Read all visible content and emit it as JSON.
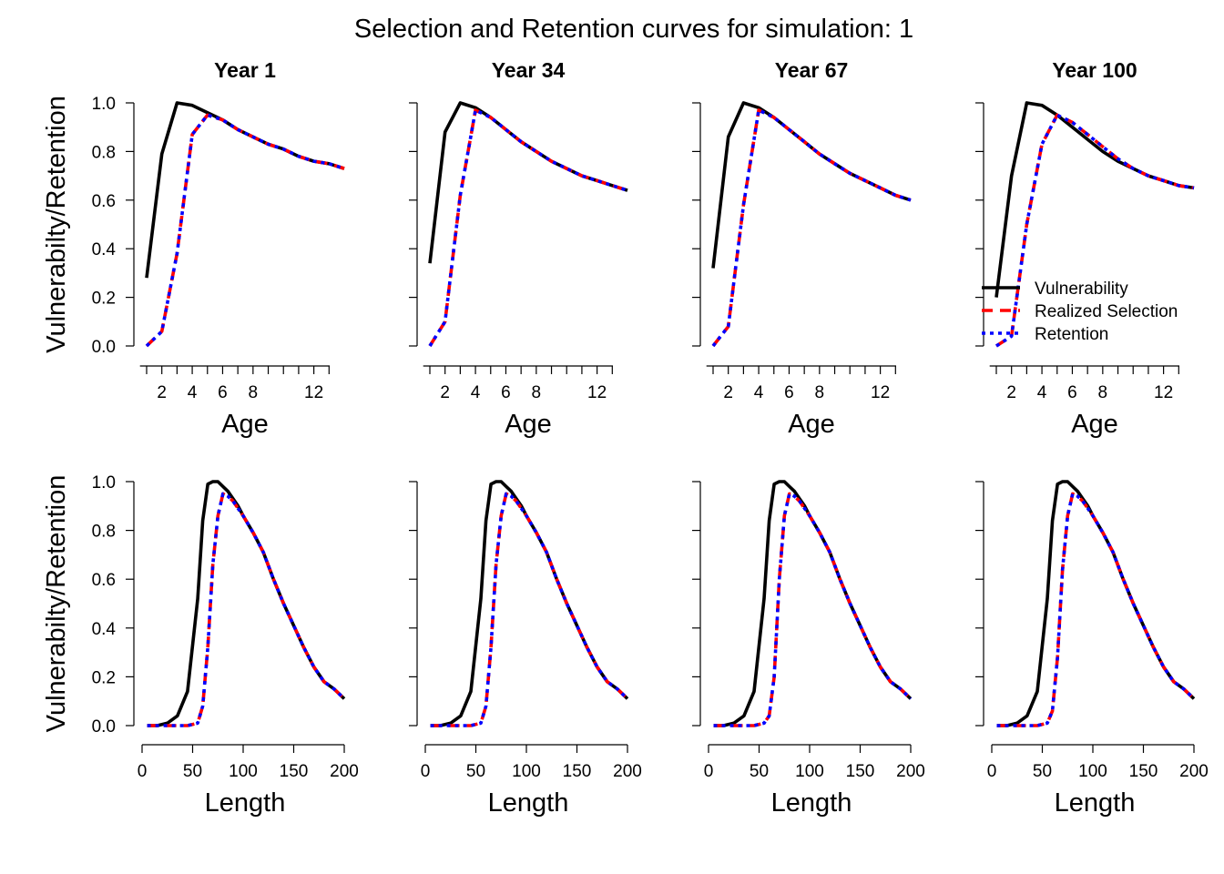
{
  "main_title": "Selection and Retention curves for simulation: 1",
  "colors": {
    "vulnerability": "#000000",
    "realized_selection": "#ff0000",
    "retention": "#0000ff",
    "axis": "#000000"
  },
  "legend": {
    "position": "bottom-right of top-right panel",
    "items": [
      {
        "label": "Vulnerability",
        "style": "solid",
        "color": "#000000"
      },
      {
        "label": "Realized Selection",
        "style": "dashed",
        "color": "#ff0000"
      },
      {
        "label": "Retention",
        "style": "dotted",
        "color": "#0000ff"
      }
    ]
  },
  "chart_data": [
    {
      "type": "line",
      "title": "Year 1",
      "xlabel": "Age",
      "ylabel": "Vulnerabilty/Retention",
      "xlim": [
        1,
        14
      ],
      "ylim": [
        0,
        1
      ],
      "xticks": [
        2,
        4,
        6,
        8,
        12
      ],
      "yticks": [
        "0.0",
        "0.2",
        "0.4",
        "0.6",
        "0.8",
        "1.0"
      ],
      "x": [
        1,
        2,
        3,
        4,
        5,
        6,
        7,
        8,
        9,
        10,
        11,
        12,
        13,
        14
      ],
      "series": [
        {
          "name": "Vulnerability",
          "values": [
            0.28,
            0.79,
            1.0,
            0.99,
            0.96,
            0.93,
            0.89,
            0.86,
            0.83,
            0.81,
            0.78,
            0.76,
            0.75,
            0.73
          ]
        },
        {
          "name": "Realized Selection",
          "values": [
            0.0,
            0.06,
            0.38,
            0.87,
            0.95,
            0.93,
            0.89,
            0.86,
            0.83,
            0.81,
            0.78,
            0.76,
            0.75,
            0.73
          ]
        },
        {
          "name": "Retention",
          "values": [
            0.0,
            0.06,
            0.38,
            0.87,
            0.95,
            0.93,
            0.89,
            0.86,
            0.83,
            0.81,
            0.78,
            0.76,
            0.75,
            0.73
          ]
        }
      ]
    },
    {
      "type": "line",
      "title": "Year 34",
      "xlabel": "Age",
      "ylabel": "",
      "xlim": [
        1,
        14
      ],
      "ylim": [
        0,
        1
      ],
      "xticks": [
        2,
        4,
        6,
        8,
        12
      ],
      "yticks": [],
      "x": [
        1,
        2,
        3,
        4,
        5,
        6,
        7,
        8,
        9,
        10,
        11,
        12,
        13,
        14
      ],
      "series": [
        {
          "name": "Vulnerability",
          "values": [
            0.34,
            0.88,
            1.0,
            0.98,
            0.94,
            0.89,
            0.84,
            0.8,
            0.76,
            0.73,
            0.7,
            0.68,
            0.66,
            0.64
          ]
        },
        {
          "name": "Realized Selection",
          "values": [
            0.0,
            0.1,
            0.62,
            0.97,
            0.94,
            0.89,
            0.84,
            0.8,
            0.76,
            0.73,
            0.7,
            0.68,
            0.66,
            0.64
          ]
        },
        {
          "name": "Retention",
          "values": [
            0.0,
            0.1,
            0.62,
            0.97,
            0.94,
            0.89,
            0.84,
            0.8,
            0.76,
            0.73,
            0.7,
            0.68,
            0.66,
            0.64
          ]
        }
      ]
    },
    {
      "type": "line",
      "title": "Year 67",
      "xlabel": "Age",
      "ylabel": "",
      "xlim": [
        1,
        14
      ],
      "ylim": [
        0,
        1
      ],
      "xticks": [
        2,
        4,
        6,
        8,
        12
      ],
      "yticks": [],
      "x": [
        1,
        2,
        3,
        4,
        5,
        6,
        7,
        8,
        9,
        10,
        11,
        12,
        13,
        14
      ],
      "series": [
        {
          "name": "Vulnerability",
          "values": [
            0.32,
            0.86,
            1.0,
            0.98,
            0.94,
            0.89,
            0.84,
            0.79,
            0.75,
            0.71,
            0.68,
            0.65,
            0.62,
            0.6
          ]
        },
        {
          "name": "Realized Selection",
          "values": [
            0.0,
            0.08,
            0.58,
            0.97,
            0.94,
            0.89,
            0.84,
            0.79,
            0.75,
            0.71,
            0.68,
            0.65,
            0.62,
            0.6
          ]
        },
        {
          "name": "Retention",
          "values": [
            0.0,
            0.08,
            0.58,
            0.97,
            0.94,
            0.89,
            0.84,
            0.79,
            0.75,
            0.71,
            0.68,
            0.65,
            0.62,
            0.6
          ]
        }
      ]
    },
    {
      "type": "line",
      "title": "Year 100",
      "xlabel": "Age",
      "ylabel": "",
      "xlim": [
        1,
        14
      ],
      "ylim": [
        0,
        1
      ],
      "xticks": [
        2,
        4,
        6,
        8,
        12
      ],
      "yticks": [],
      "x": [
        1,
        2,
        3,
        4,
        5,
        6,
        7,
        8,
        9,
        10,
        11,
        12,
        13,
        14
      ],
      "series": [
        {
          "name": "Vulnerability",
          "values": [
            0.2,
            0.7,
            1.0,
            0.99,
            0.95,
            0.9,
            0.85,
            0.8,
            0.76,
            0.73,
            0.7,
            0.68,
            0.66,
            0.65
          ]
        },
        {
          "name": "Realized Selection",
          "values": [
            0.0,
            0.04,
            0.5,
            0.83,
            0.95,
            0.92,
            0.87,
            0.82,
            0.77,
            0.73,
            0.7,
            0.68,
            0.66,
            0.65
          ]
        },
        {
          "name": "Retention",
          "values": [
            0.0,
            0.04,
            0.5,
            0.83,
            0.95,
            0.92,
            0.87,
            0.82,
            0.77,
            0.73,
            0.7,
            0.68,
            0.66,
            0.65
          ]
        }
      ]
    },
    {
      "type": "line",
      "title": "",
      "xlabel": "Length",
      "ylabel": "Vulnerabilty/Retention",
      "xlim": [
        0,
        200
      ],
      "ylim": [
        0,
        1
      ],
      "xticks": [
        0,
        50,
        100,
        150,
        200
      ],
      "yticks": [
        "0.0",
        "0.2",
        "0.4",
        "0.6",
        "0.8",
        "1.0"
      ],
      "x": [
        5,
        15,
        25,
        35,
        45,
        55,
        60,
        65,
        70,
        75,
        80,
        85,
        90,
        95,
        100,
        110,
        120,
        130,
        140,
        150,
        160,
        170,
        180,
        190,
        200
      ],
      "series": [
        {
          "name": "Vulnerability",
          "values": [
            0.0,
            0.0,
            0.01,
            0.04,
            0.14,
            0.52,
            0.84,
            0.99,
            1.0,
            1.0,
            0.98,
            0.96,
            0.93,
            0.9,
            0.86,
            0.79,
            0.71,
            0.6,
            0.5,
            0.41,
            0.32,
            0.24,
            0.18,
            0.15,
            0.11
          ]
        },
        {
          "name": "Realized Selection",
          "values": [
            0.0,
            0.0,
            0.0,
            0.0,
            0.0,
            0.01,
            0.08,
            0.32,
            0.66,
            0.86,
            0.95,
            0.94,
            0.92,
            0.89,
            0.86,
            0.79,
            0.71,
            0.6,
            0.5,
            0.41,
            0.32,
            0.24,
            0.18,
            0.15,
            0.11
          ]
        },
        {
          "name": "Retention",
          "values": [
            0.0,
            0.0,
            0.0,
            0.0,
            0.0,
            0.01,
            0.08,
            0.32,
            0.66,
            0.86,
            0.95,
            0.94,
            0.92,
            0.89,
            0.86,
            0.79,
            0.71,
            0.6,
            0.5,
            0.41,
            0.32,
            0.24,
            0.18,
            0.15,
            0.11
          ]
        }
      ]
    },
    {
      "type": "line",
      "title": "",
      "xlabel": "Length",
      "ylabel": "",
      "xlim": [
        0,
        200
      ],
      "ylim": [
        0,
        1
      ],
      "xticks": [
        0,
        50,
        100,
        150,
        200
      ],
      "yticks": [],
      "x": [
        5,
        15,
        25,
        35,
        45,
        55,
        60,
        65,
        70,
        75,
        80,
        85,
        90,
        95,
        100,
        110,
        120,
        130,
        140,
        150,
        160,
        170,
        180,
        190,
        200
      ],
      "series": [
        {
          "name": "Vulnerability",
          "values": [
            0.0,
            0.0,
            0.01,
            0.04,
            0.14,
            0.52,
            0.84,
            0.99,
            1.0,
            1.0,
            0.98,
            0.96,
            0.93,
            0.9,
            0.86,
            0.79,
            0.71,
            0.6,
            0.5,
            0.41,
            0.32,
            0.24,
            0.18,
            0.15,
            0.11
          ]
        },
        {
          "name": "Realized Selection",
          "values": [
            0.0,
            0.0,
            0.0,
            0.0,
            0.0,
            0.01,
            0.08,
            0.32,
            0.66,
            0.86,
            0.95,
            0.94,
            0.92,
            0.89,
            0.86,
            0.79,
            0.71,
            0.6,
            0.5,
            0.41,
            0.32,
            0.24,
            0.18,
            0.15,
            0.11
          ]
        },
        {
          "name": "Retention",
          "values": [
            0.0,
            0.0,
            0.0,
            0.0,
            0.0,
            0.01,
            0.08,
            0.32,
            0.66,
            0.86,
            0.95,
            0.94,
            0.92,
            0.89,
            0.86,
            0.79,
            0.71,
            0.6,
            0.5,
            0.41,
            0.32,
            0.24,
            0.18,
            0.15,
            0.11
          ]
        }
      ]
    },
    {
      "type": "line",
      "title": "",
      "xlabel": "Length",
      "ylabel": "",
      "xlim": [
        0,
        200
      ],
      "ylim": [
        0,
        1
      ],
      "xticks": [
        0,
        50,
        100,
        150,
        200
      ],
      "yticks": [],
      "x": [
        5,
        15,
        25,
        35,
        45,
        55,
        60,
        65,
        70,
        75,
        80,
        85,
        90,
        95,
        100,
        110,
        120,
        130,
        140,
        150,
        160,
        170,
        180,
        190,
        200
      ],
      "series": [
        {
          "name": "Vulnerability",
          "values": [
            0.0,
            0.0,
            0.01,
            0.04,
            0.14,
            0.52,
            0.84,
            0.99,
            1.0,
            1.0,
            0.98,
            0.96,
            0.93,
            0.9,
            0.86,
            0.79,
            0.71,
            0.6,
            0.5,
            0.41,
            0.32,
            0.24,
            0.18,
            0.15,
            0.11
          ]
        },
        {
          "name": "Realized Selection",
          "values": [
            0.0,
            0.0,
            0.0,
            0.0,
            0.0,
            0.01,
            0.04,
            0.2,
            0.6,
            0.86,
            0.95,
            0.94,
            0.92,
            0.89,
            0.86,
            0.79,
            0.71,
            0.6,
            0.5,
            0.41,
            0.32,
            0.24,
            0.18,
            0.15,
            0.11
          ]
        },
        {
          "name": "Retention",
          "values": [
            0.0,
            0.0,
            0.0,
            0.0,
            0.0,
            0.01,
            0.04,
            0.2,
            0.6,
            0.86,
            0.95,
            0.94,
            0.92,
            0.89,
            0.86,
            0.79,
            0.71,
            0.6,
            0.5,
            0.41,
            0.32,
            0.24,
            0.18,
            0.15,
            0.11
          ]
        }
      ]
    },
    {
      "type": "line",
      "title": "",
      "xlabel": "Length",
      "ylabel": "",
      "xlim": [
        0,
        200
      ],
      "ylim": [
        0,
        1
      ],
      "xticks": [
        0,
        50,
        100,
        150,
        200
      ],
      "yticks": [],
      "x": [
        5,
        15,
        25,
        35,
        45,
        55,
        60,
        65,
        70,
        75,
        80,
        85,
        90,
        95,
        100,
        110,
        120,
        130,
        140,
        150,
        160,
        170,
        180,
        190,
        200
      ],
      "series": [
        {
          "name": "Vulnerability",
          "values": [
            0.0,
            0.0,
            0.01,
            0.04,
            0.14,
            0.52,
            0.84,
            0.99,
            1.0,
            1.0,
            0.98,
            0.96,
            0.93,
            0.9,
            0.86,
            0.79,
            0.71,
            0.6,
            0.5,
            0.41,
            0.32,
            0.24,
            0.18,
            0.15,
            0.11
          ]
        },
        {
          "name": "Realized Selection",
          "values": [
            0.0,
            0.0,
            0.0,
            0.0,
            0.0,
            0.01,
            0.06,
            0.28,
            0.64,
            0.86,
            0.95,
            0.94,
            0.92,
            0.89,
            0.86,
            0.79,
            0.71,
            0.6,
            0.5,
            0.41,
            0.32,
            0.24,
            0.18,
            0.15,
            0.11
          ]
        },
        {
          "name": "Retention",
          "values": [
            0.0,
            0.0,
            0.0,
            0.0,
            0.0,
            0.01,
            0.06,
            0.28,
            0.64,
            0.86,
            0.95,
            0.94,
            0.92,
            0.89,
            0.86,
            0.79,
            0.71,
            0.6,
            0.5,
            0.41,
            0.32,
            0.24,
            0.18,
            0.15,
            0.11
          ]
        }
      ]
    }
  ]
}
